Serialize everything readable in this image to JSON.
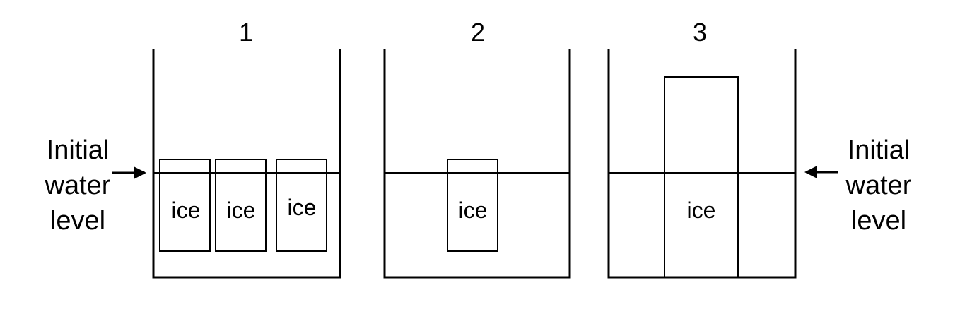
{
  "colors": {
    "line": "#000000",
    "background": "#ffffff"
  },
  "beakers": [
    {
      "number": "1",
      "ice_label": "ice"
    },
    {
      "number": "2",
      "ice_label": "ice"
    },
    {
      "number": "3",
      "ice_label": "ice"
    }
  ],
  "left_label": {
    "line1": "Initial",
    "line2": "water",
    "line3": "level"
  },
  "right_label": {
    "line1": "Initial",
    "line2": "water",
    "line3": "level"
  }
}
